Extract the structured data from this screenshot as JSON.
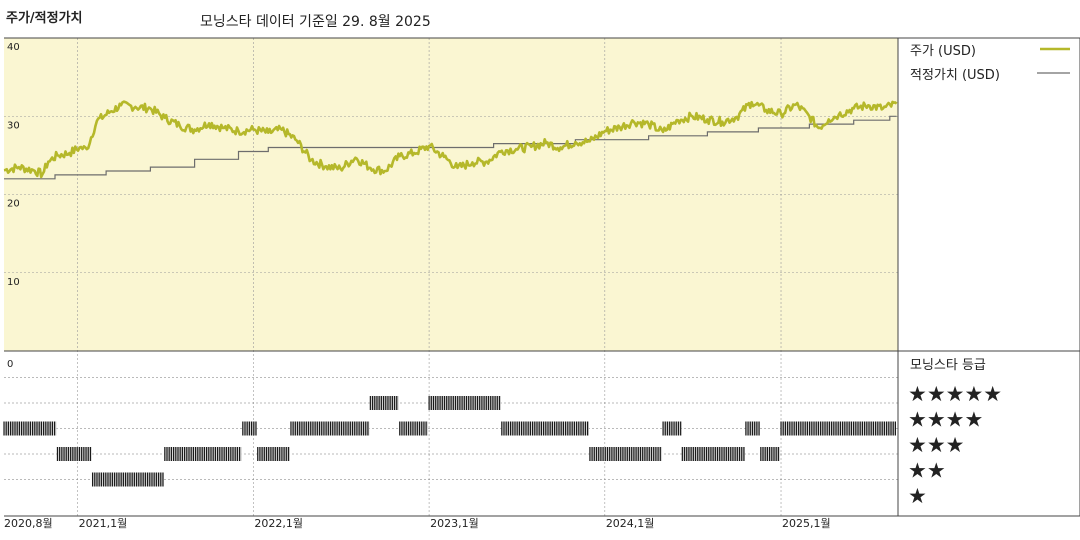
{
  "header": {
    "title": "주가/적정가치",
    "subtitle": "모닝스타 데이터 기준일 29. 8월 2025"
  },
  "legend": {
    "price_label": "주가 (USD)",
    "fair_label": "적정가치 (USD)",
    "rating_title": "모닝스타 등급"
  },
  "colors": {
    "price_line": "#b5b82a",
    "fair_line": "#6d6d6d",
    "plot_bg": "#faf6d2",
    "bars": "#1a1a1a"
  },
  "chart_data": {
    "type": "line",
    "x_range": [
      "2020-08-01",
      "2025-09-01"
    ],
    "ylim": [
      0,
      40
    ],
    "yticks": [
      "40",
      "30",
      "20",
      "10"
    ],
    "rating_axis_label": "0",
    "xtick_labels": [
      {
        "label": "2020,8월",
        "date": "2020-08-01"
      },
      {
        "label": "2021,1월",
        "date": "2021-01-01"
      },
      {
        "label": "2022,1월",
        "date": "2022-01-01"
      },
      {
        "label": "2023,1월",
        "date": "2023-01-01"
      },
      {
        "label": "2024,1월",
        "date": "2024-01-01"
      },
      {
        "label": "2025,1월",
        "date": "2025-01-01"
      }
    ],
    "grid": true,
    "series": [
      {
        "name": "주가 (USD)",
        "points": [
          [
            "2020-08-01",
            23.1
          ],
          [
            "2020-09-01",
            23.5
          ],
          [
            "2020-10-01",
            23.1
          ],
          [
            "2020-10-20",
            22.6
          ],
          [
            "2020-11-01",
            24.2
          ],
          [
            "2020-11-20",
            25.0
          ],
          [
            "2020-12-15",
            25.3
          ],
          [
            "2021-01-05",
            26.0
          ],
          [
            "2021-01-20",
            25.8
          ],
          [
            "2021-02-10",
            29.4
          ],
          [
            "2021-03-10",
            30.6
          ],
          [
            "2021-04-01",
            31.4
          ],
          [
            "2021-05-01",
            31.2
          ],
          [
            "2021-06-01",
            31.0
          ],
          [
            "2021-07-01",
            29.8
          ],
          [
            "2021-08-01",
            28.8
          ],
          [
            "2021-09-01",
            28.3
          ],
          [
            "2021-10-01",
            29.1
          ],
          [
            "2021-11-01",
            28.5
          ],
          [
            "2021-12-01",
            28.1
          ],
          [
            "2022-01-01",
            28.3
          ],
          [
            "2022-02-01",
            27.9
          ],
          [
            "2022-03-01",
            28.3
          ],
          [
            "2022-04-01",
            26.9
          ],
          [
            "2022-05-01",
            24.4
          ],
          [
            "2022-06-01",
            23.6
          ],
          [
            "2022-07-01",
            23.3
          ],
          [
            "2022-08-01",
            24.7
          ],
          [
            "2022-09-01",
            23.4
          ],
          [
            "2022-10-01",
            23.0
          ],
          [
            "2022-11-01",
            24.9
          ],
          [
            "2022-12-01",
            25.3
          ],
          [
            "2023-01-01",
            26.2
          ],
          [
            "2023-02-01",
            24.8
          ],
          [
            "2023-03-01",
            23.4
          ],
          [
            "2023-04-01",
            24.1
          ],
          [
            "2023-05-01",
            24.2
          ],
          [
            "2023-06-01",
            25.6
          ],
          [
            "2023-07-01",
            25.8
          ],
          [
            "2023-08-01",
            26.1
          ],
          [
            "2023-09-01",
            26.6
          ],
          [
            "2023-10-01",
            26.0
          ],
          [
            "2023-11-01",
            26.7
          ],
          [
            "2023-12-01",
            26.8
          ],
          [
            "2024-01-01",
            28.1
          ],
          [
            "2024-02-01",
            28.6
          ],
          [
            "2024-03-01",
            29.3
          ],
          [
            "2024-04-01",
            29.0
          ],
          [
            "2024-05-01",
            28.0
          ],
          [
            "2024-06-01",
            29.5
          ],
          [
            "2024-07-01",
            30.0
          ],
          [
            "2024-08-01",
            29.6
          ],
          [
            "2024-09-01",
            29.3
          ],
          [
            "2024-10-01",
            29.9
          ],
          [
            "2024-11-01",
            31.8
          ],
          [
            "2024-12-01",
            30.8
          ],
          [
            "2025-01-01",
            30.3
          ],
          [
            "2025-02-01",
            31.5
          ],
          [
            "2025-03-01",
            30.0
          ],
          [
            "2025-03-20",
            28.5
          ],
          [
            "2025-04-10",
            29.6
          ],
          [
            "2025-05-01",
            30.2
          ],
          [
            "2025-06-01",
            31.0
          ],
          [
            "2025-07-01",
            31.4
          ],
          [
            "2025-08-01",
            31.0
          ],
          [
            "2025-08-29",
            31.6
          ]
        ]
      },
      {
        "name": "적정가치 (USD)",
        "step": true,
        "points": [
          [
            "2020-08-01",
            22.0
          ],
          [
            "2020-11-15",
            22.5
          ],
          [
            "2021-03-01",
            23.0
          ],
          [
            "2021-06-01",
            23.5
          ],
          [
            "2021-09-01",
            24.5
          ],
          [
            "2021-12-01",
            25.5
          ],
          [
            "2022-02-01",
            26.0
          ],
          [
            "2023-05-15",
            26.5
          ],
          [
            "2023-11-01",
            27.0
          ],
          [
            "2024-04-01",
            27.5
          ],
          [
            "2024-08-01",
            28.0
          ],
          [
            "2024-11-15",
            28.5
          ],
          [
            "2025-03-01",
            29.0
          ],
          [
            "2025-06-01",
            29.5
          ],
          [
            "2025-08-15",
            30.0
          ],
          [
            "2025-08-29",
            30.0
          ]
        ]
      }
    ],
    "rating_legend": [
      "★★★★★",
      "★★★★",
      "★★★",
      "★★",
      "★"
    ],
    "star_ratings": [
      {
        "from": "2020-08-01",
        "to": "2020-11-20",
        "stars": 3
      },
      {
        "from": "2020-11-20",
        "to": "2021-02-01",
        "stars": 2
      },
      {
        "from": "2021-02-01",
        "to": "2021-07-01",
        "stars": 1
      },
      {
        "from": "2021-07-01",
        "to": "2021-12-10",
        "stars": 2
      },
      {
        "from": "2021-12-10",
        "to": "2022-01-10",
        "stars": 3
      },
      {
        "from": "2022-01-10",
        "to": "2022-03-20",
        "stars": 2
      },
      {
        "from": "2022-03-20",
        "to": "2022-09-01",
        "stars": 3
      },
      {
        "from": "2022-09-01",
        "to": "2022-11-01",
        "stars": 4
      },
      {
        "from": "2022-11-01",
        "to": "2023-01-01",
        "stars": 3
      },
      {
        "from": "2023-01-01",
        "to": "2023-06-01",
        "stars": 4
      },
      {
        "from": "2023-06-01",
        "to": "2023-12-01",
        "stars": 3
      },
      {
        "from": "2023-12-01",
        "to": "2024-05-01",
        "stars": 2
      },
      {
        "from": "2024-05-01",
        "to": "2024-06-10",
        "stars": 3
      },
      {
        "from": "2024-06-10",
        "to": "2024-10-20",
        "stars": 2
      },
      {
        "from": "2024-10-20",
        "to": "2024-11-20",
        "stars": 3
      },
      {
        "from": "2024-11-20",
        "to": "2025-01-01",
        "stars": 2
      },
      {
        "from": "2025-01-01",
        "to": "2025-08-29",
        "stars": 3
      }
    ]
  }
}
